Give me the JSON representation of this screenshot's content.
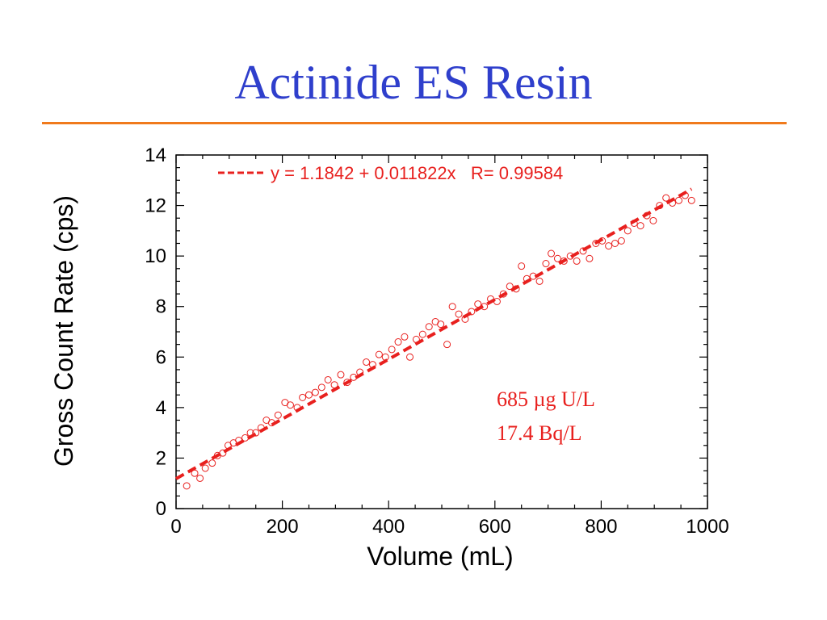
{
  "slide": {
    "title": "Actinide ES Resin"
  },
  "colors": {
    "title": "#2f3fcc",
    "rule": "#f07a1c",
    "series": "#e8201e"
  },
  "chart_data": {
    "type": "scatter",
    "xlabel": "Volume (mL)",
    "ylabel": "Gross Count Rate (cps)",
    "xlim": [
      0,
      1000
    ],
    "ylim": [
      0,
      14
    ],
    "xticks": [
      0,
      200,
      400,
      600,
      800,
      1000
    ],
    "yticks": [
      0,
      2,
      4,
      6,
      8,
      10,
      12,
      14
    ],
    "grid": false,
    "series": [
      {
        "marker": "open-circle",
        "x": [
          20,
          35,
          45,
          55,
          68,
          78,
          88,
          98,
          108,
          118,
          130,
          140,
          150,
          160,
          170,
          180,
          192,
          205,
          215,
          228,
          238,
          250,
          262,
          274,
          286,
          298,
          310,
          322,
          334,
          346,
          358,
          370,
          382,
          394,
          406,
          418,
          430,
          440,
          452,
          464,
          476,
          488,
          498,
          510,
          520,
          532,
          544,
          556,
          568,
          580,
          592,
          604,
          616,
          628,
          640,
          650,
          660,
          672,
          684,
          696,
          706,
          718,
          730,
          742,
          754,
          766,
          778,
          790,
          802,
          814,
          826,
          838,
          850,
          862,
          874,
          886,
          898,
          910,
          922,
          934,
          946,
          958,
          970
        ],
        "y": [
          0.9,
          1.4,
          1.2,
          1.6,
          1.8,
          2.1,
          2.2,
          2.5,
          2.6,
          2.7,
          2.8,
          3.0,
          3.0,
          3.2,
          3.5,
          3.4,
          3.7,
          4.2,
          4.1,
          4.0,
          4.4,
          4.5,
          4.6,
          4.8,
          5.1,
          4.9,
          5.3,
          5.0,
          5.2,
          5.4,
          5.8,
          5.7,
          6.1,
          6.0,
          6.3,
          6.6,
          6.8,
          6.0,
          6.7,
          6.9,
          7.2,
          7.4,
          7.3,
          6.5,
          8.0,
          7.7,
          7.5,
          7.8,
          8.1,
          8.0,
          8.3,
          8.2,
          8.5,
          8.8,
          8.7,
          9.6,
          9.1,
          9.2,
          9.0,
          9.7,
          10.1,
          9.9,
          9.8,
          10.0,
          9.8,
          10.2,
          9.9,
          10.5,
          10.6,
          10.4,
          10.5,
          10.6,
          11.0,
          11.3,
          11.2,
          11.6,
          11.4,
          12.0,
          12.3,
          12.1,
          12.2,
          12.4,
          12.2
        ]
      }
    ],
    "fit": {
      "intercept": 1.1842,
      "slope": 0.011822,
      "x_range": [
        0,
        970
      ],
      "label": "y = 1.1842 + 0.011822x   R= 0.99584"
    },
    "annotations": [
      "685 µg U/L",
      "17.4 Bq/L"
    ]
  }
}
